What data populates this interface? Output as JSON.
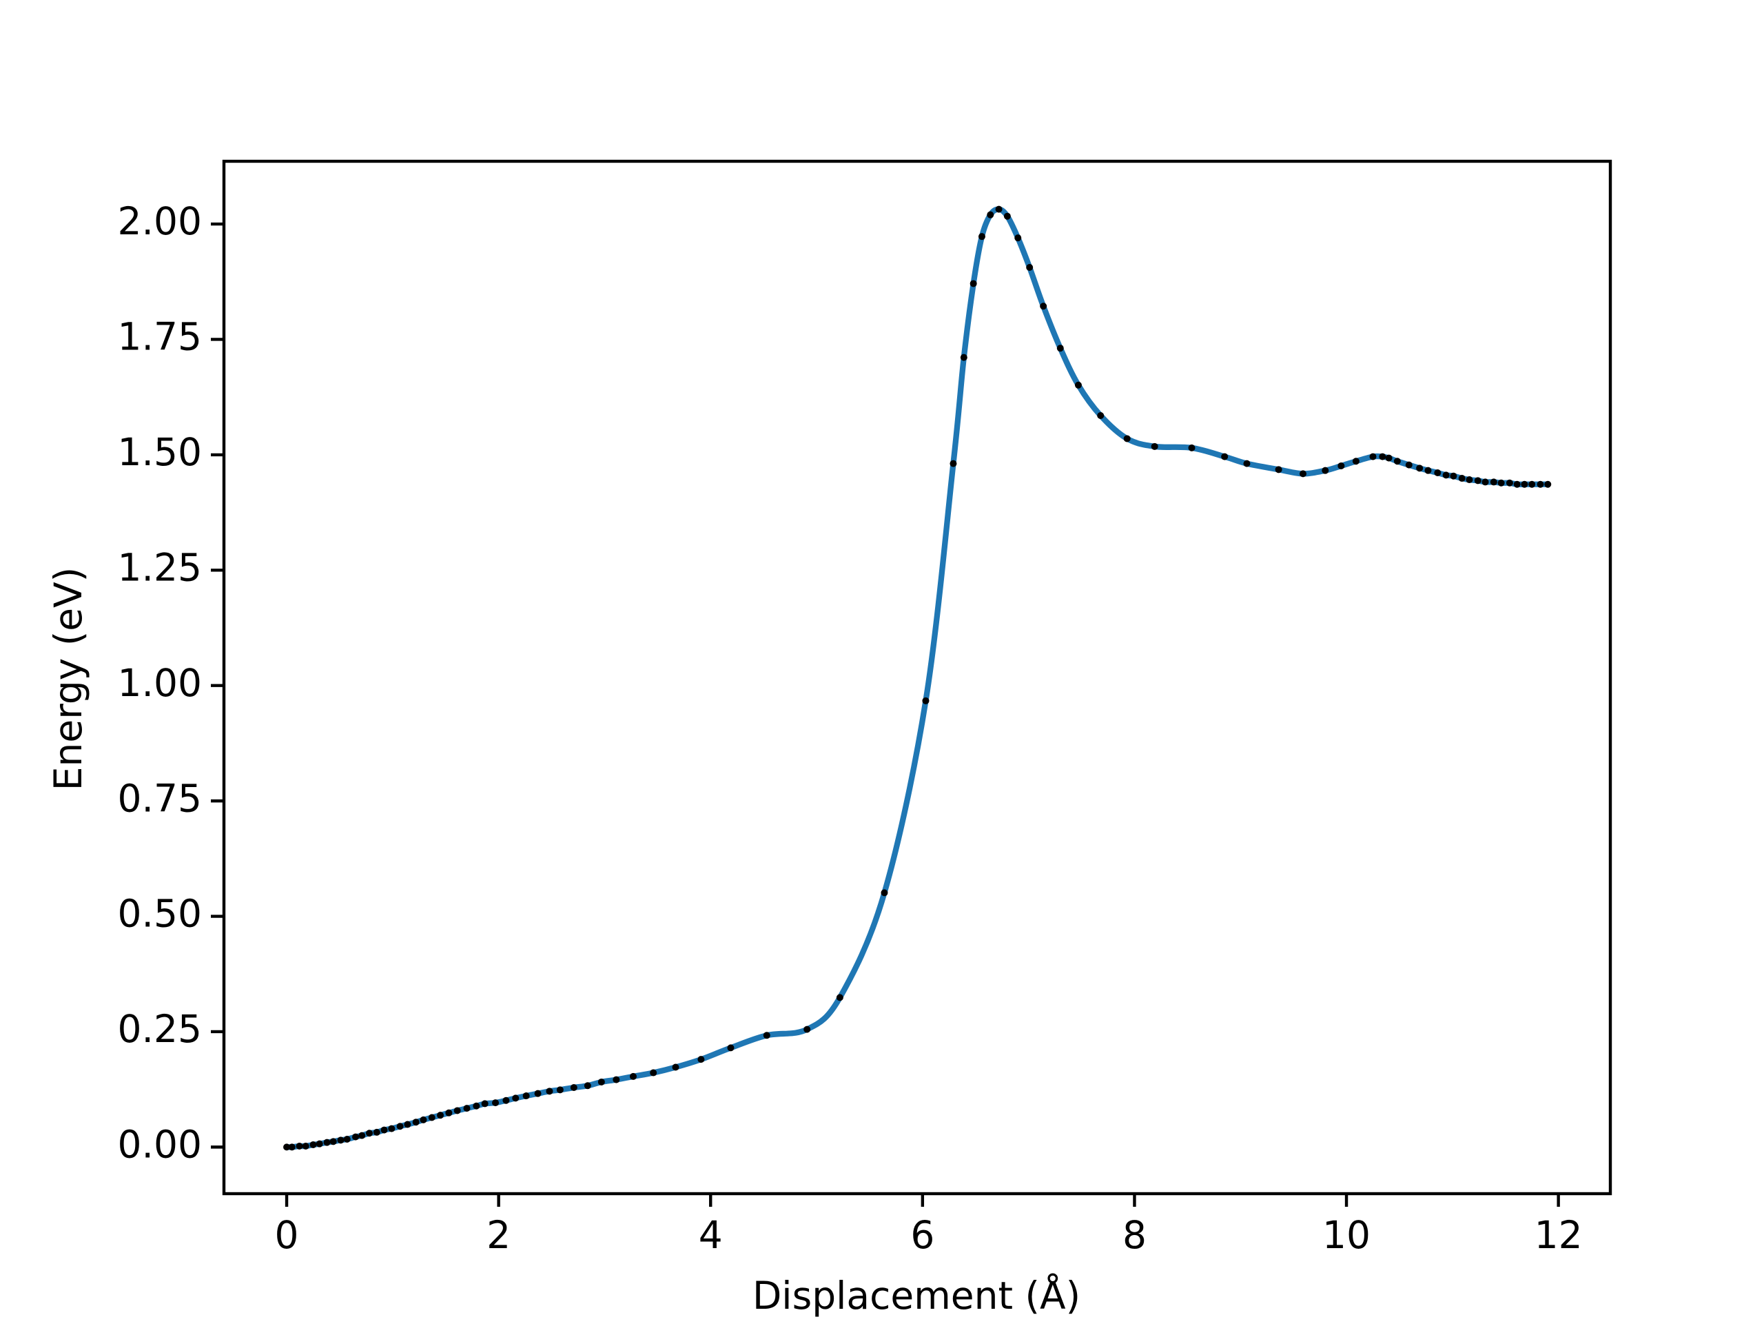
{
  "chart_data": {
    "type": "line",
    "xlabel": "Displacement (Å)",
    "ylabel": "Energy (eV)",
    "x": [
      0,
      0.05,
      0.12,
      0.18,
      0.25,
      0.31,
      0.38,
      0.44,
      0.51,
      0.57,
      0.65,
      0.71,
      0.78,
      0.85,
      0.92,
      0.99,
      1.07,
      1.14,
      1.22,
      1.29,
      1.37,
      1.45,
      1.53,
      1.61,
      1.7,
      1.79,
      1.87,
      1.97,
      2.07,
      2.16,
      2.26,
      2.37,
      2.48,
      2.58,
      2.71,
      2.84,
      2.97,
      3.11,
      3.27,
      3.46,
      3.67,
      3.91,
      4.19,
      4.53,
      4.91,
      5.22,
      5.64,
      6.03,
      6.29,
      6.39,
      6.48,
      6.56,
      6.64,
      6.72,
      6.8,
      6.9,
      7.01,
      7.14,
      7.3,
      7.47,
      7.68,
      7.93,
      8.19,
      8.54,
      8.85,
      9.06,
      9.36,
      9.59,
      9.8,
      9.95,
      10.09,
      10.25,
      10.34,
      10.4,
      10.48,
      10.59,
      10.69,
      10.77,
      10.86,
      10.94,
      11.01,
      11.09,
      11.16,
      11.24,
      11.31,
      11.39,
      11.46,
      11.54,
      11.61,
      11.68,
      11.75,
      11.83,
      11.9
    ],
    "values": [
      0,
      0,
      0.002,
      0.002,
      0.005,
      0.007,
      0.01,
      0.012,
      0.015,
      0.017,
      0.022,
      0.025,
      0.03,
      0.032,
      0.037,
      0.04,
      0.045,
      0.049,
      0.054,
      0.059,
      0.064,
      0.069,
      0.074,
      0.079,
      0.084,
      0.089,
      0.094,
      0.096,
      0.101,
      0.106,
      0.111,
      0.116,
      0.121,
      0.124,
      0.129,
      0.133,
      0.141,
      0.146,
      0.153,
      0.161,
      0.173,
      0.19,
      0.215,
      0.242,
      0.255,
      0.324,
      0.551,
      0.967,
      1.481,
      1.711,
      1.871,
      1.973,
      2.02,
      2.032,
      2.017,
      1.97,
      1.906,
      1.822,
      1.731,
      1.651,
      1.585,
      1.535,
      1.518,
      1.515,
      1.496,
      1.481,
      1.468,
      1.459,
      1.466,
      1.476,
      1.486,
      1.496,
      1.496,
      1.493,
      1.486,
      1.478,
      1.471,
      1.466,
      1.461,
      1.456,
      1.454,
      1.449,
      1.446,
      1.444,
      1.441,
      1.441,
      1.439,
      1.439,
      1.436,
      1.436,
      1.436,
      1.436,
      1.436
    ],
    "line_color": "#1f77b4",
    "marker_color": "#000000",
    "xlim": [
      -0.592,
      12.49
    ],
    "ylim": [
      -0.101,
      2.136
    ],
    "xticks": [
      0,
      2,
      4,
      6,
      8,
      10,
      12
    ],
    "yticks": [
      {
        "value": 0,
        "label": "0.00"
      },
      {
        "value": 0.25,
        "label": "0.25"
      },
      {
        "value": 0.5,
        "label": "0.50"
      },
      {
        "value": 0.75,
        "label": "0.75"
      },
      {
        "value": 1,
        "label": "1.00"
      },
      {
        "value": 1.25,
        "label": "1.25"
      },
      {
        "value": 1.5,
        "label": "1.50"
      },
      {
        "value": 1.75,
        "label": "1.75"
      },
      {
        "value": 2,
        "label": "2.00"
      }
    ],
    "grid": false
  }
}
